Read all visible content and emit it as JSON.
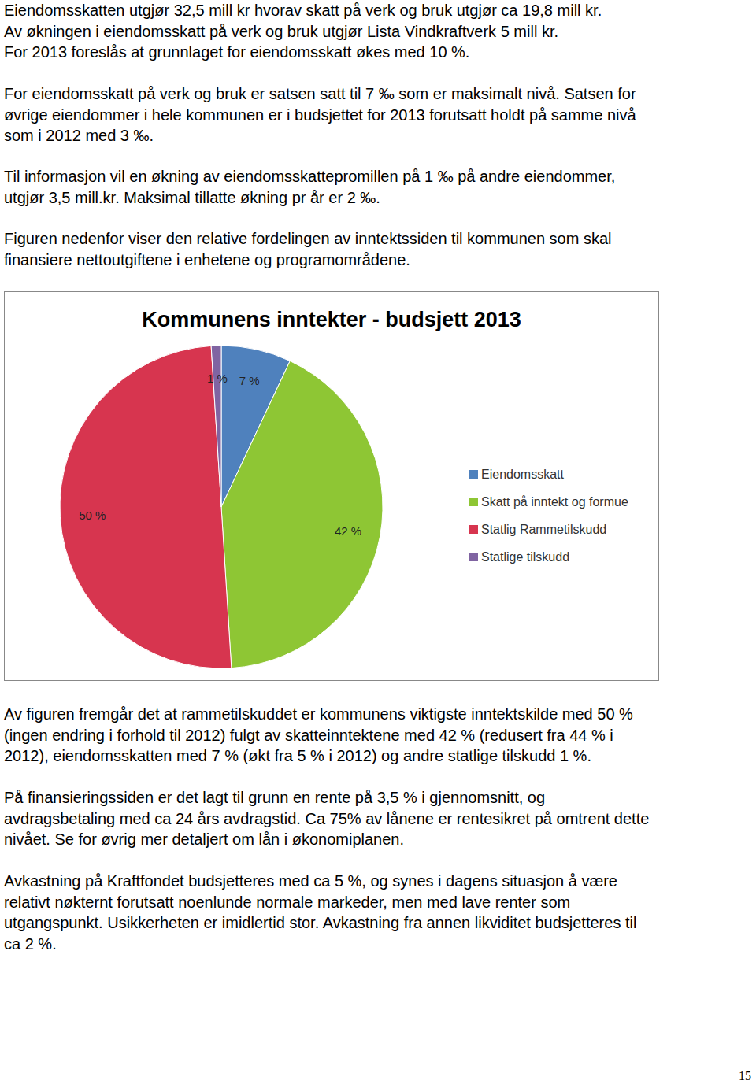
{
  "document": {
    "paragraphs_before": [
      [
        "Eiendomsskatten utgjør 32,5 mill kr hvorav skatt på verk og bruk utgjør ca 19,8 mill kr.",
        "Av økningen i eiendomsskatt på verk og bruk utgjør Lista Vindkraftverk 5 mill kr.",
        "For 2013 foreslås at grunnlaget for eiendomsskatt økes med 10 %."
      ],
      [
        "For eiendomsskatt på verk og bruk er satsen satt til 7 ‰ som er maksimalt nivå. Satsen for",
        "øvrige eiendommer i hele kommunen er i budsjettet for 2013 forutsatt holdt på samme nivå",
        "som i 2012 med 3 ‰."
      ],
      [
        "Til informasjon vil en økning av eiendomsskattepromillen på 1 ‰ på andre eiendommer,",
        "utgjør 3,5 mill.kr. Maksimal tillatte økning pr år er 2 ‰."
      ],
      [
        "Figuren nedenfor viser den relative fordelingen av inntektssiden til kommunen som skal",
        "finansiere nettoutgiftene i enhetene og programområdene."
      ]
    ],
    "paragraphs_after": [
      [
        "Av figuren fremgår det at rammetilskuddet er kommunens viktigste inntektskilde med 50 %",
        "(ingen endring i forhold til 2012) fulgt av skatteinntektene med 42 % (redusert fra 44 % i",
        "2012), eiendomsskatten med 7 % (økt fra 5 % i 2012) og andre statlige tilskudd 1 %."
      ],
      [
        "På finansieringssiden er det lagt til grunn en rente på 3,5 % i gjennomsnitt, og",
        "avdragsbetaling med ca 24 års avdragstid. Ca 75% av lånene er rentesikret på omtrent dette",
        "nivået. Se for øvrig mer detaljert om lån i økonomiplanen."
      ],
      [
        "Avkastning på Kraftfondet budsjetteres med ca 5 %, og synes i dagens situasjon å være",
        "relativt nøkternt forutsatt noenlunde normale markeder, men med lave renter som",
        "utgangspunkt. Usikkerheten er imidlertid stor. Avkastning fra annen likviditet budsjetteres til",
        "ca 2 %."
      ]
    ],
    "page_number": 15
  },
  "chart_data": {
    "type": "pie",
    "title": "Kommunens inntekter - budsjett 2013",
    "categories": [
      "Eiendomsskatt",
      "Skatt på inntekt og formue",
      "Statlig Rammetilskudd",
      "Statlige tilskudd"
    ],
    "values": [
      7,
      42,
      50,
      1
    ],
    "value_labels": [
      "7 %",
      "42 %",
      "50 %",
      "1 %"
    ],
    "colors": [
      "#4f81bd",
      "#8ec634",
      "#d7354f",
      "#8064a2"
    ],
    "data_labels": true,
    "legend": "right"
  }
}
